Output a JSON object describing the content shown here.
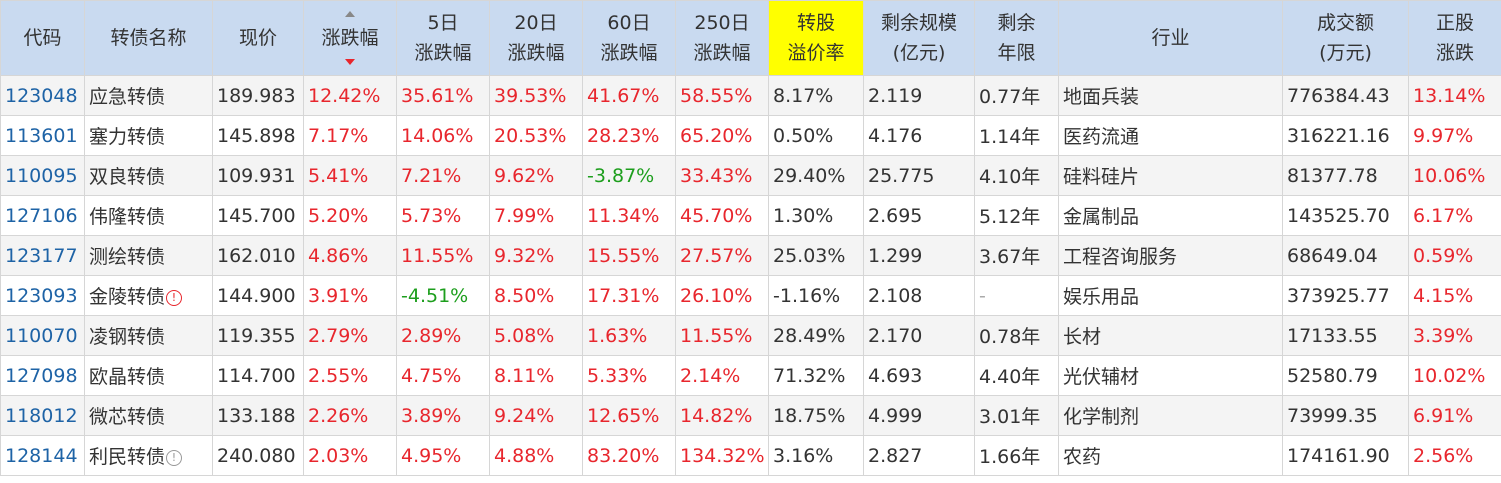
{
  "colors": {
    "header_bg": "#c9daf0",
    "highlight": "#ffff00",
    "up": "#e8262d",
    "down": "#1d9e1d",
    "code": "#1e63a6"
  },
  "headers": {
    "code": "代码",
    "name": "转债名称",
    "price": "现价",
    "change": "涨跌幅",
    "d5_1": "5日",
    "d5_2": "涨跌幅",
    "d20_1": "20日",
    "d20_2": "涨跌幅",
    "d60_1": "60日",
    "d60_2": "涨跌幅",
    "d250_1": "250日",
    "d250_2": "涨跌幅",
    "premium_1": "转股",
    "premium_2": "溢价率",
    "scale_1": "剩余规模",
    "scale_2": "(亿元)",
    "years_1": "剩余",
    "years_2": "年限",
    "industry": "行业",
    "volume_1": "成交额",
    "volume_2": "(万元)",
    "stock_1": "正股",
    "stock_2": "涨跌"
  },
  "rows": [
    {
      "code": "123048",
      "name": "应急转债",
      "icon": "",
      "price": "189.983",
      "change": "12.42%",
      "d5": "35.61%",
      "d20": "39.53%",
      "d60": "41.67%",
      "d250": "58.55%",
      "premium": "8.17%",
      "scale": "2.119",
      "years": "0.77年",
      "industry": "地面兵装",
      "volume": "776384.43",
      "stock": "13.14%"
    },
    {
      "code": "113601",
      "name": "塞力转债",
      "icon": "",
      "price": "145.898",
      "change": "7.17%",
      "d5": "14.06%",
      "d20": "20.53%",
      "d60": "28.23%",
      "d250": "65.20%",
      "premium": "0.50%",
      "scale": "4.176",
      "years": "1.14年",
      "industry": "医药流通",
      "volume": "316221.16",
      "stock": "9.97%"
    },
    {
      "code": "110095",
      "name": "双良转债",
      "icon": "",
      "price": "109.931",
      "change": "5.41%",
      "d5": "7.21%",
      "d20": "9.62%",
      "d60": "-3.87%",
      "d250": "33.43%",
      "premium": "29.40%",
      "scale": "25.775",
      "years": "4.10年",
      "industry": "硅料硅片",
      "volume": "81377.78",
      "stock": "10.06%"
    },
    {
      "code": "127106",
      "name": "伟隆转债",
      "icon": "",
      "price": "145.700",
      "change": "5.20%",
      "d5": "5.73%",
      "d20": "7.99%",
      "d60": "11.34%",
      "d250": "45.70%",
      "premium": "1.30%",
      "scale": "2.695",
      "years": "5.12年",
      "industry": "金属制品",
      "volume": "143525.70",
      "stock": "6.17%"
    },
    {
      "code": "123177",
      "name": "测绘转债",
      "icon": "",
      "price": "162.010",
      "change": "4.86%",
      "d5": "11.55%",
      "d20": "9.32%",
      "d60": "15.55%",
      "d250": "27.57%",
      "premium": "25.03%",
      "scale": "1.299",
      "years": "3.67年",
      "industry": "工程咨询服务",
      "volume": "68649.04",
      "stock": "0.59%"
    },
    {
      "code": "123093",
      "name": "金陵转债",
      "icon": "red",
      "price": "144.900",
      "change": "3.91%",
      "d5": "-4.51%",
      "d20": "8.50%",
      "d60": "17.31%",
      "d250": "26.10%",
      "premium": "-1.16%",
      "scale": "2.108",
      "years": "-",
      "industry": "娱乐用品",
      "volume": "373925.77",
      "stock": "4.15%"
    },
    {
      "code": "110070",
      "name": "凌钢转债",
      "icon": "",
      "price": "119.355",
      "change": "2.79%",
      "d5": "2.89%",
      "d20": "5.08%",
      "d60": "1.63%",
      "d250": "11.55%",
      "premium": "28.49%",
      "scale": "2.170",
      "years": "0.78年",
      "industry": "长材",
      "volume": "17133.55",
      "stock": "3.39%"
    },
    {
      "code": "127098",
      "name": "欧晶转债",
      "icon": "",
      "price": "114.700",
      "change": "2.55%",
      "d5": "4.75%",
      "d20": "8.11%",
      "d60": "5.33%",
      "d250": "2.14%",
      "premium": "71.32%",
      "scale": "4.693",
      "years": "4.40年",
      "industry": "光伏辅材",
      "volume": "52580.79",
      "stock": "10.02%"
    },
    {
      "code": "118012",
      "name": "微芯转债",
      "icon": "",
      "price": "133.188",
      "change": "2.26%",
      "d5": "3.89%",
      "d20": "9.24%",
      "d60": "12.65%",
      "d250": "14.82%",
      "premium": "18.75%",
      "scale": "4.999",
      "years": "3.01年",
      "industry": "化学制剂",
      "volume": "73999.35",
      "stock": "6.91%"
    },
    {
      "code": "128144",
      "name": "利民转债",
      "icon": "grey",
      "price": "240.080",
      "change": "2.03%",
      "d5": "4.95%",
      "d20": "4.88%",
      "d60": "83.20%",
      "d250": "134.32%",
      "premium": "3.16%",
      "scale": "2.827",
      "years": "1.66年",
      "industry": "农药",
      "volume": "174161.90",
      "stock": "2.56%"
    }
  ]
}
